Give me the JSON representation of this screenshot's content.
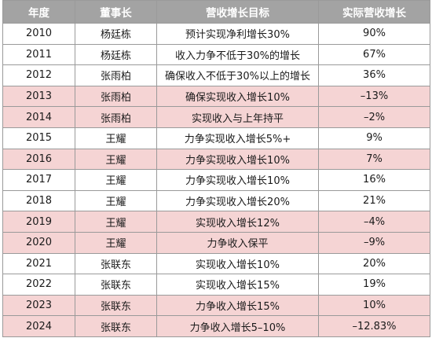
{
  "headers": [
    "年度",
    "董事长",
    "营收增长目标",
    "实际营收增长"
  ],
  "rows": [
    {
      "year": "2010",
      "chairman": "杨廷栋",
      "target": "预计实现净利增长30%",
      "actual": "90%",
      "highlight": false
    },
    {
      "year": "2011",
      "chairman": "杨廷栋",
      "target": "收入力争不低于30%的增长",
      "actual": "67%",
      "highlight": false
    },
    {
      "year": "2012",
      "chairman": "张雨柏",
      "target": "确保收入不低于30%以上的增长",
      "actual": "36%",
      "highlight": false
    },
    {
      "year": "2013",
      "chairman": "张雨柏",
      "target": "确保实现收入增长10%",
      "actual": "–13%",
      "highlight": true
    },
    {
      "year": "2014",
      "chairman": "张雨柏",
      "target": "实现收入与上年持平",
      "actual": "–2%",
      "highlight": true
    },
    {
      "year": "2015",
      "chairman": "王耀",
      "target": "力争实现收入增长5%+",
      "actual": "9%",
      "highlight": false
    },
    {
      "year": "2016",
      "chairman": "王耀",
      "target": "力争实现收入增长10%",
      "actual": "7%",
      "highlight": true
    },
    {
      "year": "2017",
      "chairman": "王耀",
      "target": "力争实现收入增长10%",
      "actual": "16%",
      "highlight": false
    },
    {
      "year": "2018",
      "chairman": "王耀",
      "target": "力争实现收入增长20%",
      "actual": "21%",
      "highlight": false
    },
    {
      "year": "2019",
      "chairman": "王耀",
      "target": "实现收入增长12%",
      "actual": "–4%",
      "highlight": true
    },
    {
      "year": "2020",
      "chairman": "王耀",
      "target": "力争收入保平",
      "actual": "–9%",
      "highlight": true
    },
    {
      "year": "2021",
      "chairman": "张联东",
      "target": "实现收入增长10%",
      "actual": "20%",
      "highlight": false
    },
    {
      "year": "2022",
      "chairman": "张联东",
      "target": "实现收入增长15%",
      "actual": "19%",
      "highlight": false
    },
    {
      "year": "2023",
      "chairman": "张联东",
      "target": "力争收入增长15%",
      "actual": "10%",
      "highlight": true
    },
    {
      "year": "2024",
      "chairman": "张联东",
      "target": "力争收入增长5–10%",
      "actual": "–12.83%",
      "highlight": true
    }
  ],
  "colors": {
    "header_bg": "#a3a3a3",
    "highlight_bg": "#f5d4d4",
    "border": "#9a9a9a"
  }
}
